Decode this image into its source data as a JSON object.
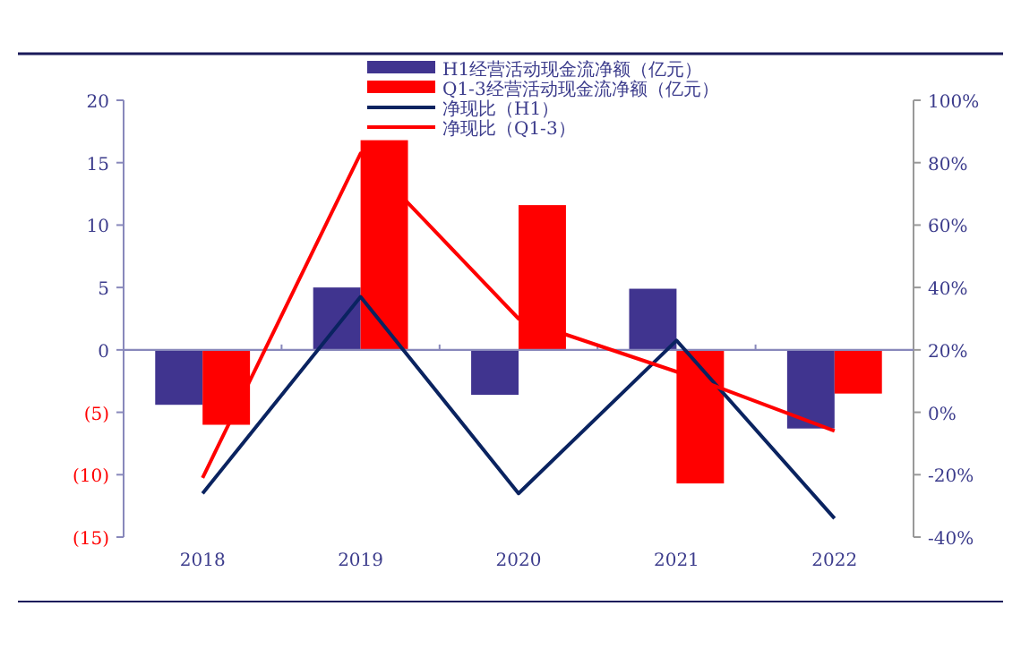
{
  "chart_data": {
    "type": "bar",
    "categories": [
      "2018",
      "2019",
      "2020",
      "2021",
      "2022"
    ],
    "series": [
      {
        "name": "H1经营活动现金流净额（亿元）",
        "color": "#40348f",
        "values": [
          -4.4,
          5.0,
          -3.6,
          4.9,
          -6.3
        ]
      },
      {
        "name": "Q1-3经营活动现金流净额（亿元）",
        "color": "#ff0000",
        "values": [
          -6.0,
          16.8,
          11.6,
          -10.7,
          -3.5
        ]
      },
      {
        "name": "净现比（H1）",
        "type": "line",
        "axis": "y2",
        "color": "#0a2360",
        "values": [
          -26,
          37,
          -26,
          23,
          -34
        ]
      },
      {
        "name": "净现比（Q1-3）",
        "type": "line",
        "axis": "y2",
        "color": "#ff0000",
        "values": [
          -21,
          83,
          30,
          13,
          -6
        ]
      }
    ],
    "ylim": [
      -15,
      20
    ],
    "yticks": [
      {
        "value": -15,
        "label": "(15)"
      },
      {
        "value": -10,
        "label": "(10)"
      },
      {
        "value": -5,
        "label": "(5)"
      },
      0,
      5,
      10,
      15,
      20
    ],
    "y2lim": [
      -40,
      100
    ],
    "y2ticks": [
      {
        "value": -40,
        "label": "-40%"
      },
      {
        "value": -20,
        "label": "-20%"
      },
      {
        "value": 0,
        "label": "0%"
      },
      {
        "value": 20,
        "label": "20%"
      },
      {
        "value": 40,
        "label": "40%"
      },
      {
        "value": 60,
        "label": "60%"
      },
      {
        "value": 80,
        "label": "80%"
      },
      {
        "value": 100,
        "label": "100%"
      }
    ],
    "ref_lines": [
      {
        "axis": "y",
        "value": 0,
        "color": "#8888bb"
      }
    ],
    "legend": "top",
    "grid": false,
    "marker": "none"
  }
}
